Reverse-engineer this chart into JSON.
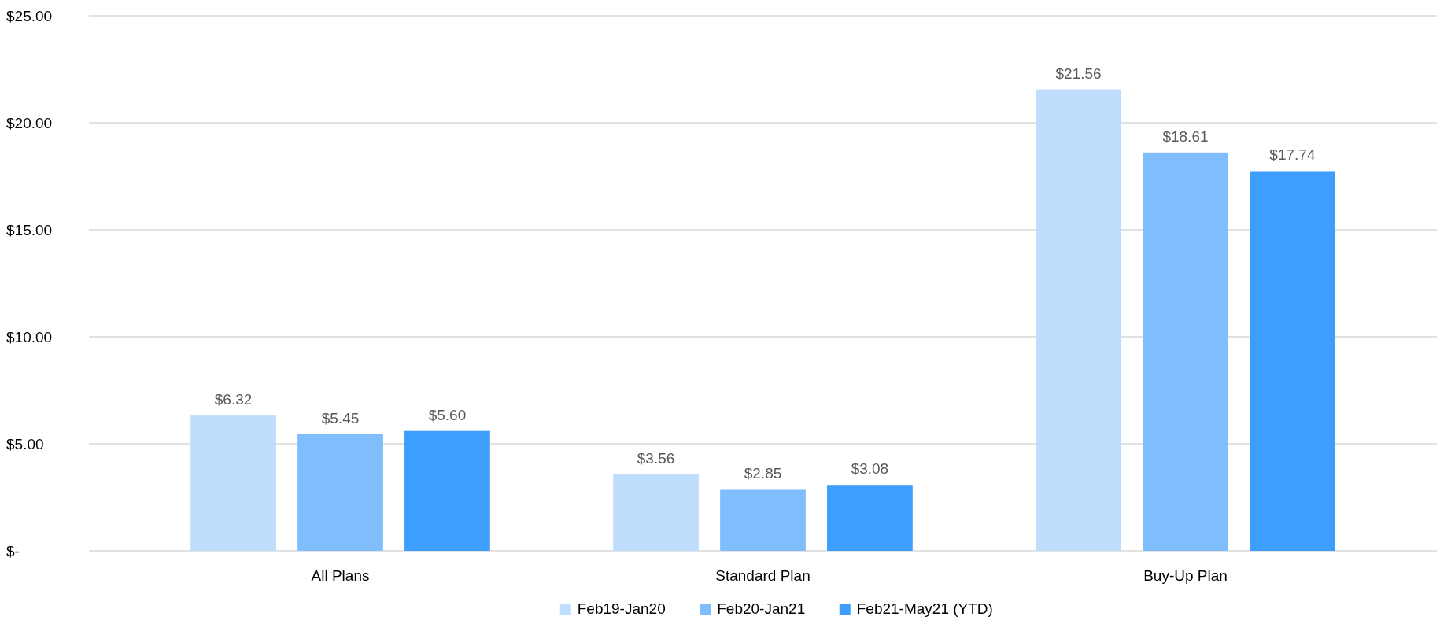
{
  "chart_data": {
    "type": "bar",
    "categories": [
      "All Plans",
      "Standard Plan",
      "Buy-Up Plan"
    ],
    "series": [
      {
        "name": "Feb19-Jan20",
        "color": "#bfdefe",
        "values": [
          6.32,
          3.56,
          21.56
        ],
        "value_labels": [
          "$6.32",
          "$3.56",
          "$21.56"
        ]
      },
      {
        "name": "Feb20-Jan21",
        "color": "#7fbdfd",
        "values": [
          5.45,
          2.85,
          18.61
        ],
        "value_labels": [
          "$5.45",
          "$2.85",
          "$18.61"
        ]
      },
      {
        "name": "Feb21-May21 (YTD)",
        "color": "#3d9efd",
        "values": [
          5.6,
          3.08,
          17.74
        ],
        "value_labels": [
          "$5.60",
          "$3.08",
          "$17.74"
        ]
      }
    ],
    "ylim": [
      0,
      25
    ],
    "yticks": [
      {
        "value": 0,
        "label": "$-"
      },
      {
        "value": 5,
        "label": "$5.00"
      },
      {
        "value": 10,
        "label": "$10.00"
      },
      {
        "value": 15,
        "label": "$15.00"
      },
      {
        "value": 20,
        "label": "$20.00"
      },
      {
        "value": 25,
        "label": "$25.00"
      }
    ],
    "grid": "y",
    "legend": "bottom"
  }
}
